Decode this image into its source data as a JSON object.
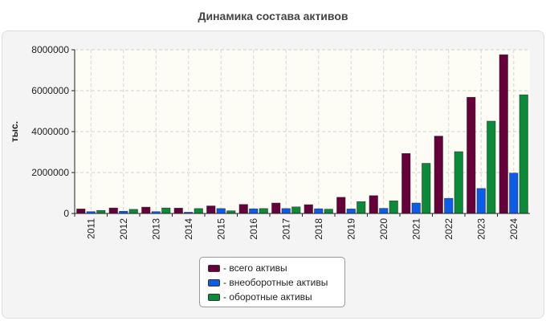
{
  "chart_data": {
    "type": "bar",
    "title": "Динамика состава активов",
    "ylabel": "тыс.",
    "xlabel": "",
    "categories": [
      "2011",
      "2012",
      "2013",
      "2014",
      "2015",
      "2016",
      "2017",
      "2018",
      "2019",
      "2020",
      "2021",
      "2022",
      "2023",
      "2024"
    ],
    "ylim": [
      0,
      8000000
    ],
    "yticks": [
      0,
      2000000,
      4000000,
      6000000,
      8000000
    ],
    "grid": true,
    "legend_position": "bottom-center",
    "series": [
      {
        "name": "- всего активы",
        "color": "#66003a",
        "values": [
          220000,
          270000,
          310000,
          260000,
          370000,
          440000,
          510000,
          430000,
          790000,
          870000,
          2930000,
          3780000,
          5680000,
          7760000
        ]
      },
      {
        "name": "- внеоборотные активы",
        "color": "#0b5ce8",
        "values": [
          90000,
          110000,
          90000,
          60000,
          240000,
          230000,
          240000,
          230000,
          220000,
          250000,
          510000,
          740000,
          1220000,
          1970000
        ]
      },
      {
        "name": "- оборотные активы",
        "color": "#0b8a3a",
        "values": [
          150000,
          200000,
          270000,
          240000,
          130000,
          240000,
          320000,
          210000,
          580000,
          620000,
          2450000,
          3020000,
          4510000,
          5800000
        ]
      }
    ]
  }
}
